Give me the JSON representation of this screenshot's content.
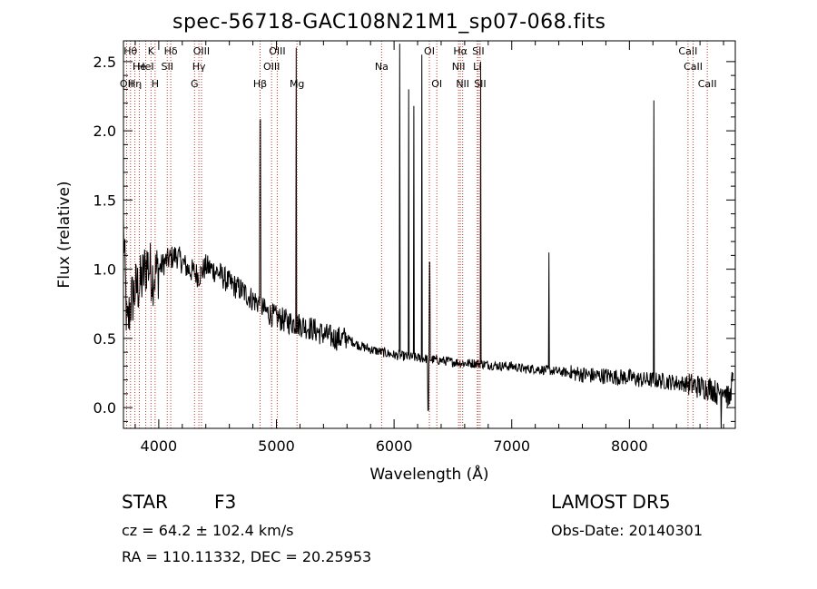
{
  "title": "spec-56718-GAC108N21M1_sp07-068.fits",
  "footer": {
    "class_label": "STAR",
    "subclass": "F3",
    "survey": "LAMOST  DR5",
    "cz": "cz = 64.2 ± 102.4 km/s",
    "obs_date": "Obs-Date: 20140301",
    "coords": "RA = 110.11332, DEC =  20.25953"
  },
  "chart_data": {
    "type": "line",
    "title": "spec-56718-GAC108N21M1_sp07-068.fits",
    "xlabel": "Wavelength (Å)",
    "ylabel": "Flux (relative)",
    "xlim": [
      3700,
      8900
    ],
    "ylim": [
      -0.15,
      2.65
    ],
    "xticks": [
      4000,
      5000,
      6000,
      7000,
      8000
    ],
    "yticks": [
      0.0,
      0.5,
      1.0,
      1.5,
      2.0,
      2.5
    ],
    "ytick_labels": [
      "0.0",
      "0.5",
      "1.0",
      "1.5",
      "2.0",
      "2.5"
    ],
    "grid": false,
    "series": [
      {
        "x": [
          3700,
          3730,
          3760,
          3800,
          3850,
          3900,
          3950,
          4000,
          4050,
          4100,
          4150,
          4200,
          4250,
          4300,
          4340,
          4400,
          4500,
          4600,
          4700,
          4800,
          4860,
          4900,
          5000,
          5100,
          5200,
          5300,
          5400,
          5500,
          5600,
          5700,
          5800,
          5900,
          6000,
          6100,
          6200,
          6300,
          6400,
          6500,
          6600,
          6700,
          6800,
          6900,
          7000,
          7100,
          7200,
          7300,
          7400,
          7500,
          7600,
          7700,
          7800,
          7900,
          8000,
          8100,
          8200,
          8300,
          8400,
          8500,
          8600,
          8700,
          8750,
          8800,
          8850,
          8870
        ],
        "y": [
          1.3,
          0.55,
          0.75,
          0.85,
          0.9,
          1.05,
          0.95,
          1.0,
          1.05,
          1.08,
          1.1,
          1.05,
          1.0,
          0.98,
          0.95,
          1.02,
          0.98,
          0.9,
          0.85,
          0.78,
          0.75,
          0.7,
          0.65,
          0.62,
          0.6,
          0.57,
          0.53,
          0.5,
          0.5,
          0.45,
          0.42,
          0.4,
          0.38,
          0.37,
          0.36,
          0.35,
          0.34,
          0.33,
          0.32,
          0.32,
          0.31,
          0.3,
          0.3,
          0.28,
          0.28,
          0.27,
          0.26,
          0.25,
          0.24,
          0.23,
          0.23,
          0.22,
          0.22,
          0.2,
          0.2,
          0.19,
          0.18,
          0.17,
          0.15,
          0.14,
          0.1,
          0.15,
          0.05,
          0.18
        ]
      }
    ],
    "spikes": [
      {
        "x": 4862,
        "peak": 2.08
      },
      {
        "x": 5167,
        "peak": 2.6
      },
      {
        "x": 6048,
        "peak": 2.63
      },
      {
        "x": 6125,
        "peak": 2.3
      },
      {
        "x": 6167,
        "peak": 2.18
      },
      {
        "x": 6236,
        "peak": 2.55
      },
      {
        "x": 6302,
        "peak": 1.05
      },
      {
        "x": 6737,
        "peak": 2.5
      },
      {
        "x": 7316,
        "peak": 1.12
      },
      {
        "x": 8209,
        "peak": 2.22
      }
    ],
    "dips": [
      {
        "x": 6290,
        "y": -0.02
      },
      {
        "x": 8780,
        "y": -0.15
      }
    ],
    "lines": [
      {
        "x": 3727,
        "label": "OII",
        "row": 3
      },
      {
        "x": 3760,
        "label": "Hθ",
        "row": 1
      },
      {
        "x": 3797,
        "label": "Hη",
        "row": 3
      },
      {
        "x": 3835,
        "label": "He",
        "row": 2
      },
      {
        "x": 3889,
        "label": "HeI",
        "row": 2
      },
      {
        "x": 3934,
        "label": "K",
        "row": 1
      },
      {
        "x": 3969,
        "label": "H",
        "row": 3
      },
      {
        "x": 4072,
        "label": "SII",
        "row": 2
      },
      {
        "x": 4102,
        "label": "Hδ",
        "row": 1
      },
      {
        "x": 4304,
        "label": "G",
        "row": 3
      },
      {
        "x": 4341,
        "label": "Hγ",
        "row": 2
      },
      {
        "x": 4363,
        "label": "OIII",
        "row": 1
      },
      {
        "x": 4861,
        "label": "Hβ",
        "row": 3
      },
      {
        "x": 4959,
        "label": "OIII",
        "row": 2
      },
      {
        "x": 5007,
        "label": "OIII",
        "row": 1
      },
      {
        "x": 5175,
        "label": "Mg",
        "row": 3
      },
      {
        "x": 5894,
        "label": "Na",
        "row": 2
      },
      {
        "x": 6300,
        "label": "OI",
        "row": 1
      },
      {
        "x": 6363,
        "label": "OI",
        "row": 3
      },
      {
        "x": 6548,
        "label": "NII",
        "row": 2
      },
      {
        "x": 6563,
        "label": "Hα",
        "row": 1
      },
      {
        "x": 6583,
        "label": "NII",
        "row": 3
      },
      {
        "x": 6707,
        "label": "Li",
        "row": 2
      },
      {
        "x": 6716,
        "label": "SII",
        "row": 1
      },
      {
        "x": 6731,
        "label": "SII",
        "row": 3
      },
      {
        "x": 8498,
        "label": "CaII",
        "row": 1
      },
      {
        "x": 8542,
        "label": "CaII",
        "row": 2
      },
      {
        "x": 8662,
        "label": "CaII",
        "row": 3
      }
    ],
    "colors": {
      "spectrum": "#000000",
      "line_marker": "#c0392b",
      "axes": "#000000"
    }
  }
}
